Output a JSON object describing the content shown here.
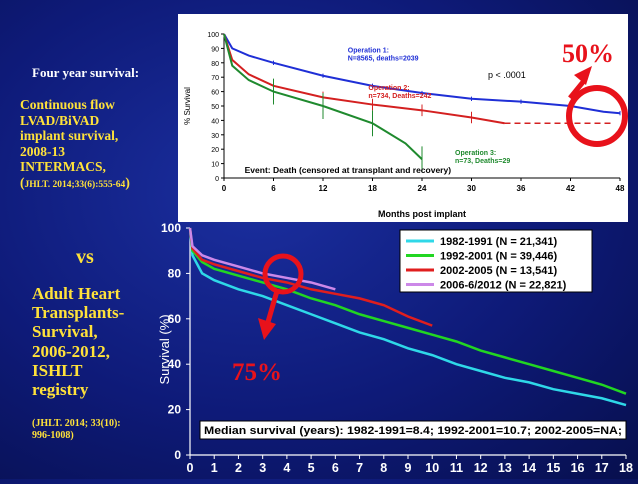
{
  "left_panel": {
    "four_year": "Four year survival:",
    "cf_lines": [
      "Continuous flow",
      "LVAD/BiVAD",
      "implant survival,",
      "2008-13",
      "INTERMACS,"
    ],
    "cf_ref_open": "(",
    "cf_ref": "JHLT. 2014;33(6):555-64",
    "cf_ref_close": ")",
    "vs": "vs",
    "adult_lines": [
      "Adult Heart",
      "Transplants-",
      "Survival,",
      "2006-2012,",
      "ISHLT",
      "registry"
    ],
    "adult_ref_lines": [
      "(JHLT. 2014; 33(10):",
      "996-1008)"
    ]
  },
  "colors": {
    "text_yellow": "#ffe23a",
    "callout_red": "#e8121b"
  },
  "callouts": {
    "top": "50%",
    "bottom": "75%"
  },
  "chart_data": [
    {
      "type": "line",
      "ylabel": "% Survival",
      "xlabel": "Months post implant",
      "x_ticks": [
        0,
        6,
        12,
        18,
        24,
        30,
        36,
        42,
        48
      ],
      "y_ticks": [
        0,
        10,
        20,
        30,
        40,
        50,
        60,
        70,
        80,
        90,
        100
      ],
      "xlim": [
        0,
        48
      ],
      "ylim": [
        0,
        100
      ],
      "p_value": "p < .0001",
      "event_text": "Event:  Death (censored at transplant and recovery)",
      "series": [
        {
          "name": "Operation 1:",
          "detail": "N=8565, deaths=2039",
          "color": "#1f2fd6",
          "x": [
            0,
            1,
            3,
            6,
            12,
            18,
            24,
            30,
            36,
            42,
            46,
            48
          ],
          "y": [
            100,
            90,
            85,
            80,
            71,
            64,
            59,
            55,
            53,
            50,
            46,
            45
          ]
        },
        {
          "name": "Operation 2:",
          "detail": "n=734, Deaths=242",
          "color": "#d42020",
          "x": [
            0,
            1,
            3,
            6,
            12,
            18,
            24,
            30,
            34
          ],
          "y": [
            100,
            82,
            72,
            64,
            56,
            51,
            47,
            42,
            38
          ]
        },
        {
          "name": "Operation 3:",
          "detail": "n=73, Deaths=29",
          "color": "#1f8a2e",
          "x": [
            0,
            1,
            3,
            6,
            12,
            18,
            22,
            24
          ],
          "y": [
            100,
            78,
            68,
            60,
            50,
            38,
            24,
            13
          ]
        }
      ]
    },
    {
      "type": "line",
      "ylabel": "Survival (%)",
      "x_ticks": [
        0,
        1,
        2,
        3,
        4,
        5,
        6,
        7,
        8,
        9,
        10,
        11,
        12,
        13,
        14,
        15,
        16,
        17,
        18
      ],
      "y_ticks": [
        0,
        20,
        40,
        60,
        80,
        100
      ],
      "xlim": [
        0,
        18
      ],
      "ylim": [
        0,
        100
      ],
      "median_text": "Median survival (years): 1982-1991=8.4; 1992-2001=10.7; 2002-2005=NA;",
      "series": [
        {
          "name": "1982-1991 (N = 21,341)",
          "color": "#2fd8e8",
          "x": [
            0,
            0.1,
            0.5,
            1,
            2,
            3,
            4,
            5,
            6,
            7,
            8,
            9,
            10,
            11,
            12,
            13,
            14,
            15,
            16,
            17,
            18
          ],
          "y": [
            100,
            88,
            80,
            77,
            73,
            70,
            66,
            62,
            58,
            54,
            51,
            47,
            44,
            40,
            37,
            34,
            32,
            29,
            27,
            25,
            22
          ]
        },
        {
          "name": "1992-2001 (N = 39,446)",
          "color": "#22d622",
          "x": [
            0,
            0.1,
            0.5,
            1,
            2,
            3,
            4,
            5,
            6,
            7,
            8,
            9,
            10,
            11,
            12,
            13,
            14,
            15,
            16,
            17,
            18
          ],
          "y": [
            100,
            90,
            85,
            82,
            79,
            76,
            73,
            69,
            66,
            62,
            59,
            56,
            53,
            50,
            46,
            43,
            40,
            37,
            34,
            31,
            27
          ]
        },
        {
          "name": "2002-2005 (N = 13,541)",
          "color": "#e01e1e",
          "x": [
            0,
            0.1,
            0.5,
            1,
            2,
            3,
            4,
            5,
            6,
            7,
            8,
            9,
            10
          ],
          "y": [
            100,
            91,
            86,
            84,
            81,
            78,
            76,
            73,
            71,
            69,
            66,
            61,
            57
          ]
        },
        {
          "name": "2006-6/2012 (N = 22,821)",
          "color": "#cc88e8",
          "x": [
            0,
            0.1,
            0.5,
            1,
            2,
            3,
            4,
            5,
            6
          ],
          "y": [
            100,
            92,
            88,
            86,
            83,
            80,
            78,
            76,
            73
          ]
        }
      ]
    }
  ]
}
